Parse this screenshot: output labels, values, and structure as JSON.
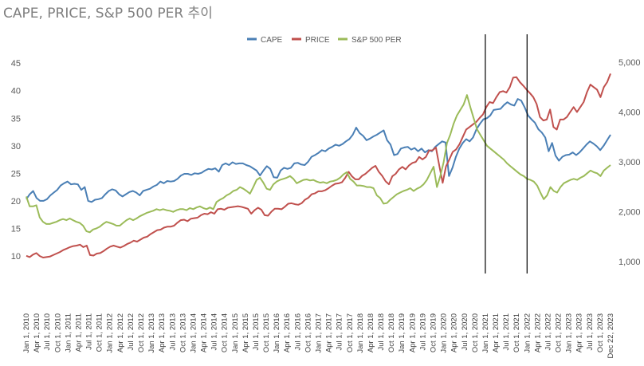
{
  "title": "CAPE, PRICE, S&P 500 PER 추이",
  "chart_data": {
    "type": "line",
    "title": "CAPE, PRICE, S&P 500 PER 추이",
    "xlabel": "",
    "ylabel": "",
    "y_left": {
      "ticks": [
        10,
        15,
        20,
        25,
        30,
        35,
        40,
        45
      ],
      "range": [
        7.5,
        46
      ]
    },
    "y_right": {
      "ticks": [
        1000,
        2000,
        3000,
        4000,
        5000
      ],
      "tick_labels": [
        "1,000",
        "2,000",
        "3,000",
        "4,000",
        "5,000"
      ],
      "range": [
        600,
        5300
      ]
    },
    "x_tick_labels": [
      "Jan 1, 2010",
      "Apr 1, 2010",
      "Jul 1, 2010",
      "Oct 1, 2010",
      "Jan 1, 2011",
      "Apr 1, 2011",
      "Jul 1, 2011",
      "Oct 1, 2011",
      "Jan 1, 2012",
      "Apr 1, 2012",
      "Jul 1, 2012",
      "Oct 1, 2012",
      "Jan 1, 2013",
      "Apr 1, 2013",
      "Jul 1, 2013",
      "Oct 1, 2013",
      "Jan 1, 2014",
      "Apr 1, 2014",
      "Jul 1, 2014",
      "Oct 1, 2014",
      "Jan 1, 2015",
      "Apr 1, 2015",
      "Jul 1, 2015",
      "Oct 1, 2015",
      "Jan 1, 2016",
      "Apr 1, 2016",
      "Jul 1, 2016",
      "Oct 1, 2016",
      "Jan 1, 2017",
      "Apr 1, 2017",
      "Jul 1, 2017",
      "Oct 1, 2017",
      "Jan 1, 2018",
      "Apr 1, 2018",
      "Jul 1, 2018",
      "Oct 1, 2018",
      "Jan 1, 2019",
      "Apr 1, 2019",
      "Jul 1, 2019",
      "Oct 1, 2019",
      "Jan 1, 2020",
      "Apr 1, 2020",
      "Jul 1, 2020",
      "Oct 1, 2020",
      "Jan 1, 2021",
      "Apr 1, 2021",
      "Jul 1, 2021",
      "Oct 1, 2021",
      "Jan 1, 2022",
      "Apr 1, 2022",
      "Jul 1, 2022",
      "Oct 1, 2022",
      "Jan 1, 2023",
      "Apr 1, 2023",
      "Jul 1, 2023",
      "Oct 1, 2023",
      "Dec 22, 2023"
    ],
    "legend": "top",
    "vertical_markers": [
      "Jan 1, 2021",
      "Jan 1, 2022"
    ],
    "series": [
      {
        "name": "CAPE",
        "axis": "left",
        "color": "#4a7fb5",
        "values": [
          20.3,
          21.2,
          21.8,
          20.5,
          20.0,
          20.0,
          20.3,
          21.0,
          21.5,
          22.0,
          22.8,
          23.2,
          23.5,
          23.0,
          23.1,
          23.0,
          22.0,
          22.5,
          20.0,
          19.8,
          20.2,
          20.3,
          20.5,
          21.2,
          21.8,
          22.1,
          21.9,
          21.2,
          20.8,
          21.2,
          21.6,
          21.8,
          21.5,
          21.0,
          21.8,
          22.0,
          22.2,
          22.6,
          22.9,
          23.5,
          23.2,
          23.6,
          23.5,
          23.6,
          24.0,
          24.6,
          24.9,
          24.9,
          24.7,
          25.0,
          24.9,
          25.1,
          25.5,
          25.8,
          25.7,
          25.9,
          25.3,
          26.5,
          26.8,
          26.5,
          27.0,
          26.7,
          26.8,
          26.8,
          26.5,
          26.3,
          25.9,
          25.5,
          24.6,
          25.5,
          26.3,
          25.8,
          24.3,
          24.2,
          25.5,
          26.0,
          25.8,
          26.0,
          26.8,
          26.9,
          26.6,
          26.5,
          27.1,
          28.0,
          28.3,
          28.7,
          29.2,
          29.0,
          29.5,
          29.8,
          30.2,
          30.0,
          30.3,
          30.8,
          31.2,
          32.0,
          33.3,
          32.3,
          31.8,
          31.0,
          31.3,
          31.7,
          32.0,
          32.4,
          32.8,
          31.0,
          30.2,
          28.3,
          28.5,
          29.5,
          29.7,
          29.8,
          29.3,
          29.6,
          29.0,
          29.5,
          28.8,
          29.2,
          29.0,
          29.8,
          30.3,
          30.8,
          30.6,
          24.5,
          26.0,
          28.0,
          29.5,
          30.5,
          31.2,
          30.8,
          31.5,
          33.0,
          34.0,
          34.8,
          35.0,
          35.5,
          36.5,
          36.6,
          36.7,
          37.4,
          37.9,
          37.5,
          37.3,
          38.5,
          38.2,
          37.0,
          35.5,
          34.8,
          34.2,
          33.0,
          32.4,
          31.5,
          29.0,
          30.5,
          28.2,
          27.3,
          28.0,
          28.3,
          28.4,
          28.8,
          28.3,
          28.8,
          29.5,
          30.2,
          30.8,
          30.4,
          29.9,
          29.2,
          30.0,
          31.0,
          32.0
        ]
      },
      {
        "name": "PRICE",
        "axis": "right",
        "color": "#c0504d",
        "values": [
          1115,
          1090,
          1140,
          1170,
          1110,
          1080,
          1090,
          1100,
          1130,
          1160,
          1190,
          1230,
          1260,
          1290,
          1310,
          1320,
          1340,
          1290,
          1320,
          1130,
          1120,
          1160,
          1170,
          1210,
          1260,
          1300,
          1320,
          1300,
          1280,
          1310,
          1350,
          1380,
          1420,
          1400,
          1440,
          1480,
          1500,
          1550,
          1590,
          1630,
          1640,
          1680,
          1700,
          1700,
          1720,
          1780,
          1830,
          1840,
          1810,
          1860,
          1870,
          1880,
          1930,
          1960,
          1950,
          1990,
          1960,
          2050,
          2060,
          2040,
          2080,
          2090,
          2100,
          2110,
          2100,
          2080,
          2060,
          1960,
          2030,
          2080,
          2040,
          1930,
          1920,
          2000,
          2060,
          2060,
          2050,
          2100,
          2160,
          2170,
          2150,
          2140,
          2170,
          2240,
          2280,
          2350,
          2370,
          2410,
          2410,
          2430,
          2470,
          2520,
          2560,
          2570,
          2590,
          2680,
          2800,
          2710,
          2650,
          2650,
          2720,
          2760,
          2820,
          2880,
          2920,
          2800,
          2720,
          2610,
          2550,
          2710,
          2760,
          2850,
          2900,
          2850,
          2930,
          2980,
          3000,
          3100,
          3050,
          3100,
          3230,
          3230,
          3290,
          2920,
          2580,
          2910,
          3050,
          3200,
          3250,
          3350,
          3500,
          3650,
          3700,
          3750,
          3800,
          3880,
          3950,
          4100,
          4200,
          4180,
          4300,
          4400,
          4420,
          4390,
          4500,
          4690,
          4700,
          4600,
          4530,
          4450,
          4380,
          4300,
          4160,
          3900,
          3830,
          3850,
          4050,
          3700,
          3650,
          3850,
          3850,
          3900,
          4000,
          4100,
          4000,
          4100,
          4200,
          4400,
          4550,
          4500,
          4450,
          4300,
          4500,
          4600,
          4770
        ]
      },
      {
        "name": "S&P 500 PER",
        "axis": "left",
        "color": "#9bbb59",
        "values": [
          20.8,
          19.0,
          19.0,
          19.2,
          17.0,
          16.2,
          15.8,
          15.8,
          16.0,
          16.2,
          16.5,
          16.7,
          16.5,
          16.8,
          16.5,
          16.2,
          16.0,
          15.5,
          14.5,
          14.3,
          14.8,
          15.0,
          15.3,
          15.8,
          16.2,
          16.0,
          15.8,
          15.5,
          15.5,
          16.0,
          16.5,
          16.8,
          16.5,
          16.8,
          17.2,
          17.5,
          17.8,
          18.0,
          18.2,
          18.5,
          18.3,
          18.5,
          18.3,
          18.2,
          18.0,
          18.3,
          18.5,
          18.5,
          18.3,
          18.7,
          18.5,
          18.8,
          19.0,
          18.7,
          18.5,
          18.8,
          18.5,
          19.8,
          20.2,
          20.5,
          21.0,
          21.3,
          21.8,
          22.0,
          22.5,
          22.2,
          21.8,
          21.3,
          22.5,
          23.8,
          24.2,
          23.3,
          22.2,
          22.0,
          23.0,
          23.5,
          23.8,
          24.0,
          24.2,
          24.5,
          24.0,
          23.2,
          23.5,
          23.8,
          23.9,
          23.7,
          23.8,
          23.5,
          23.3,
          23.4,
          23.2,
          23.5,
          23.6,
          23.8,
          24.2,
          24.8,
          25.2,
          24.0,
          23.5,
          22.8,
          22.8,
          22.7,
          22.5,
          22.5,
          22.3,
          21.0,
          20.5,
          19.5,
          19.6,
          20.2,
          20.7,
          21.2,
          21.5,
          21.8,
          22.0,
          22.3,
          21.8,
          22.2,
          22.5,
          23.0,
          23.8,
          25.0,
          26.2,
          22.5,
          24.5,
          27.0,
          30.5,
          32.0,
          34.0,
          35.5,
          36.5,
          37.5,
          39.2,
          37.0,
          35.0,
          33.0,
          32.0,
          31.0,
          30.0,
          29.5,
          29.0,
          28.5,
          28.0,
          27.5,
          26.8,
          26.3,
          25.8,
          25.3,
          24.8,
          24.5,
          24.0,
          23.8,
          23.5,
          22.8,
          21.5,
          20.3,
          21.0,
          22.5,
          21.8,
          21.5,
          22.5,
          23.2,
          23.5,
          23.8,
          24.0,
          23.8,
          24.2,
          24.5,
          25.0,
          25.5,
          25.2,
          25.0,
          24.5,
          25.5,
          26.0,
          26.5
        ]
      }
    ]
  }
}
